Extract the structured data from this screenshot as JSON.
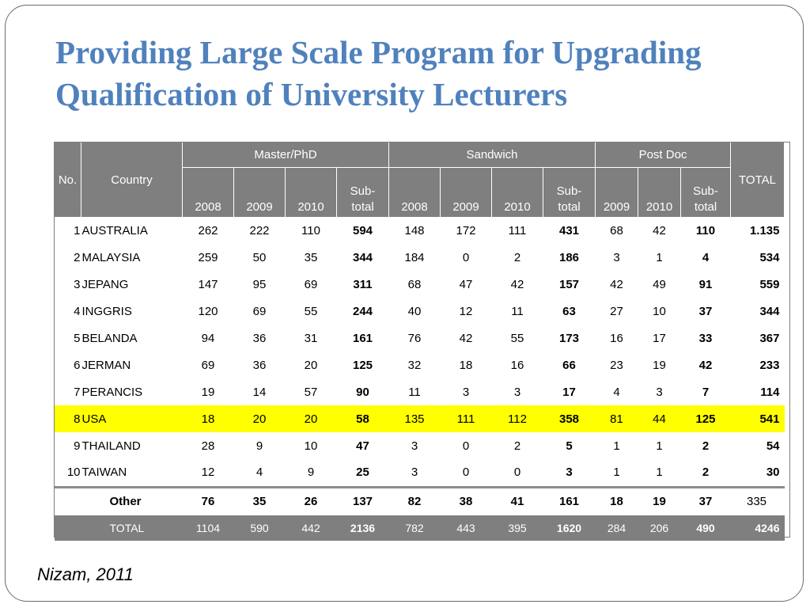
{
  "title_lines": [
    "Providing Large Scale Program for Upgrading",
    "Qualification of University Lecturers"
  ],
  "source": "Nizam, 2011",
  "headers": {
    "no": "No.",
    "country": "Country",
    "groups": [
      "Master/PhD",
      "Sandwich",
      "Post Doc"
    ],
    "total": "TOTAL",
    "master_years": [
      "2008",
      "2009",
      "2010"
    ],
    "sandwich_years": [
      "2008",
      "2009",
      "2010"
    ],
    "postdoc_years": [
      "2009",
      "2010"
    ],
    "subtotal_line1": "Sub-",
    "subtotal_line2": "total"
  },
  "rows": [
    {
      "no": "1",
      "country": "AUSTRALIA",
      "v": [
        "262",
        "222",
        "110",
        "594",
        "148",
        "172",
        "111",
        "431",
        "68",
        "42",
        "110",
        "1.135"
      ]
    },
    {
      "no": "2",
      "country": "MALAYSIA",
      "v": [
        "259",
        "50",
        "35",
        "344",
        "184",
        "0",
        "2",
        "186",
        "3",
        "1",
        "4",
        "534"
      ]
    },
    {
      "no": "3",
      "country": "JEPANG",
      "v": [
        "147",
        "95",
        "69",
        "311",
        "68",
        "47",
        "42",
        "157",
        "42",
        "49",
        "91",
        "559"
      ]
    },
    {
      "no": "4",
      "country": "INGGRIS",
      "v": [
        "120",
        "69",
        "55",
        "244",
        "40",
        "12",
        "11",
        "63",
        "27",
        "10",
        "37",
        "344"
      ]
    },
    {
      "no": "5",
      "country": "BELANDA",
      "v": [
        "94",
        "36",
        "31",
        "161",
        "76",
        "42",
        "55",
        "173",
        "16",
        "17",
        "33",
        "367"
      ]
    },
    {
      "no": "6",
      "country": "JERMAN",
      "v": [
        "69",
        "36",
        "20",
        "125",
        "32",
        "18",
        "16",
        "66",
        "23",
        "19",
        "42",
        "233"
      ]
    },
    {
      "no": "7",
      "country": "PERANCIS",
      "v": [
        "19",
        "14",
        "57",
        "90",
        "11",
        "3",
        "3",
        "17",
        "4",
        "3",
        "7",
        "114"
      ]
    },
    {
      "no": "8",
      "country": "USA",
      "v": [
        "18",
        "20",
        "20",
        "58",
        "135",
        "111",
        "112",
        "358",
        "81",
        "44",
        "125",
        "541"
      ],
      "highlight": true
    },
    {
      "no": "9",
      "country": "THAILAND",
      "v": [
        "28",
        "9",
        "10",
        "47",
        "3",
        "0",
        "2",
        "5",
        "1",
        "1",
        "2",
        "54"
      ]
    },
    {
      "no": "10",
      "country": "TAIWAN",
      "v": [
        "12",
        "4",
        "9",
        "25",
        "3",
        "0",
        "0",
        "3",
        "1",
        "1",
        "2",
        "30"
      ]
    }
  ],
  "other": {
    "label": "Other",
    "v": [
      "76",
      "35",
      "26",
      "137",
      "82",
      "38",
      "41",
      "161",
      "18",
      "19",
      "37",
      "335"
    ]
  },
  "total_row": {
    "label": "TOTAL",
    "v": [
      "1104",
      "590",
      "442",
      "2136",
      "782",
      "443",
      "395",
      "1620",
      "284",
      "206",
      "490",
      "4246"
    ]
  },
  "colors": {
    "title": "#4f81bd",
    "header_bg": "#7f7f7f",
    "highlight": "#ffff00"
  }
}
